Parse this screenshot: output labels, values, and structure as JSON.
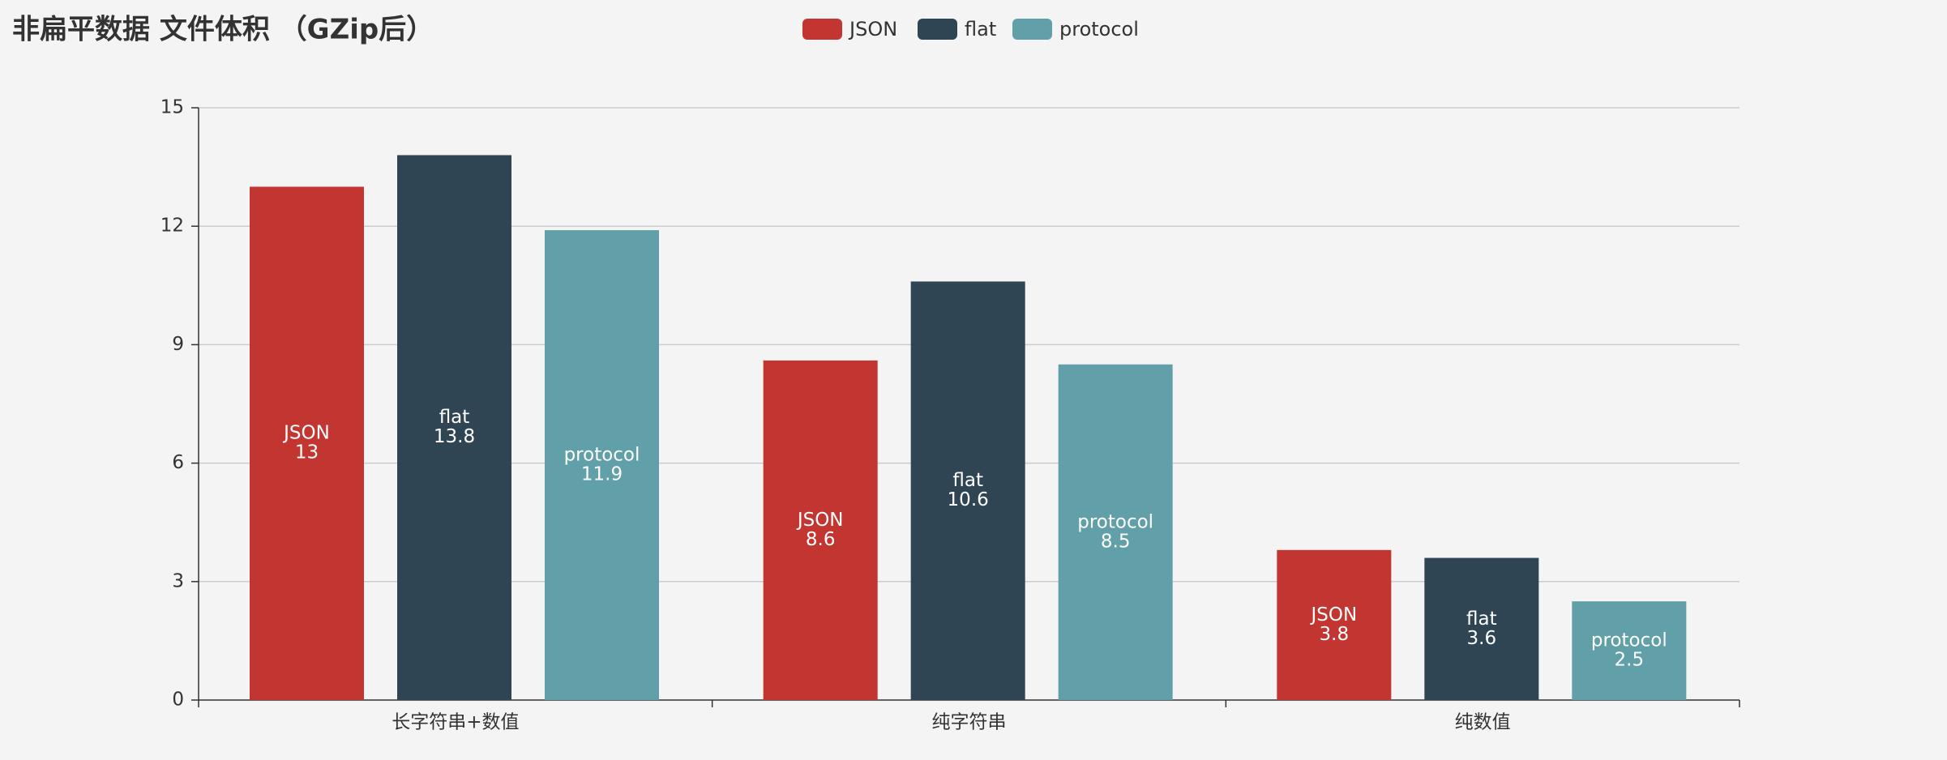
{
  "chart_data": {
    "type": "bar",
    "title": "非扁平数据 文件体积 （GZip后）",
    "categories": [
      "长字符串+数值",
      "纯字符串",
      "纯数值"
    ],
    "series": [
      {
        "name": "JSON",
        "color": "#c23531",
        "values": [
          13,
          8.6,
          3.8
        ]
      },
      {
        "name": "flat",
        "color": "#2f4554",
        "values": [
          13.8,
          10.6,
          3.6
        ]
      },
      {
        "name": "protocol",
        "color": "#61a0a8",
        "values": [
          11.9,
          8.5,
          2.5
        ]
      }
    ],
    "ylim": [
      0,
      15
    ],
    "yticks": [
      0,
      3,
      6,
      9,
      12,
      15
    ],
    "grid": true,
    "legend": "top"
  }
}
